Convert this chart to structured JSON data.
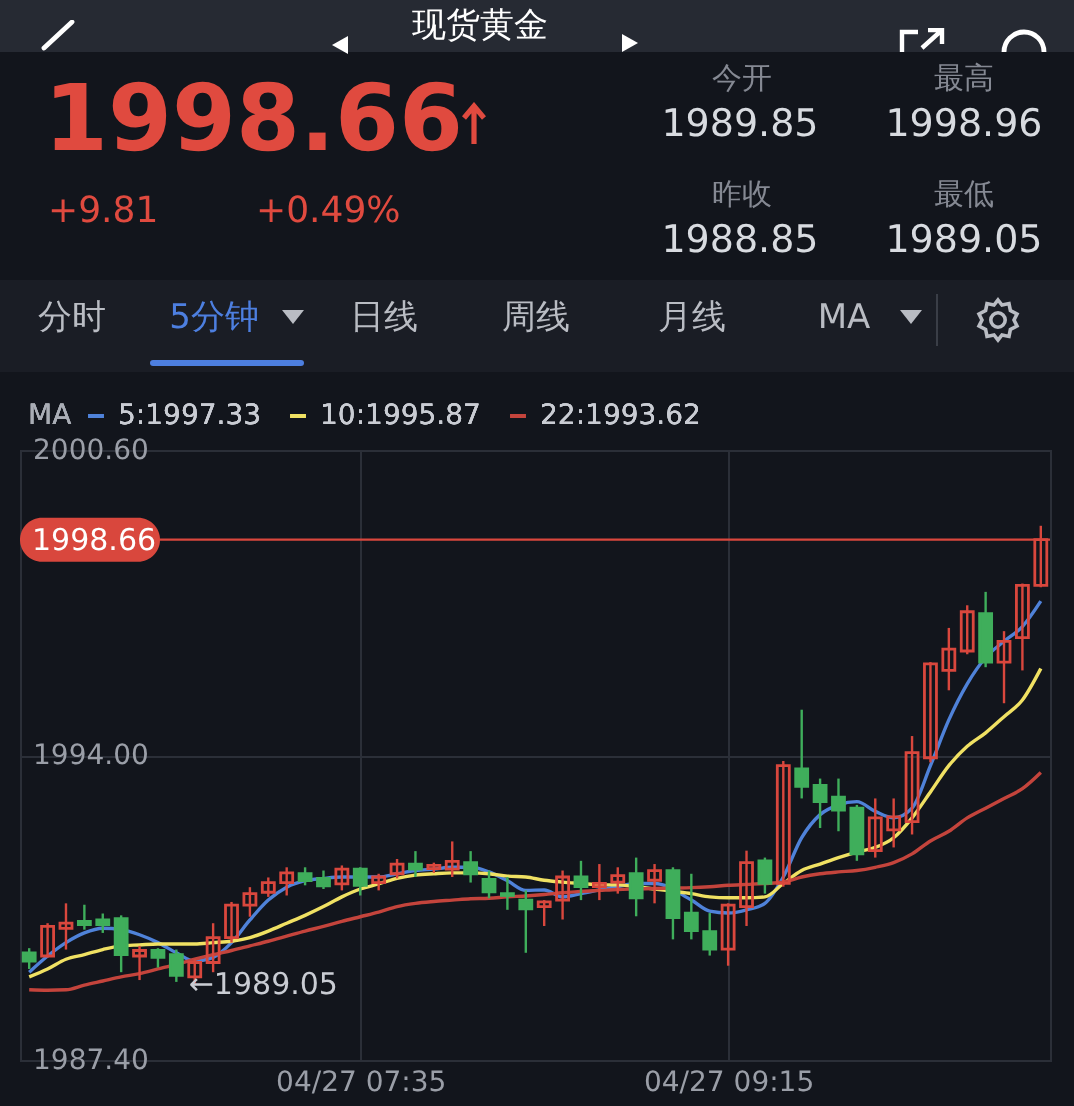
{
  "chart_data": {
    "type": "candlestick",
    "title": "现货黄金",
    "categories": [
      null,
      null,
      null,
      null,
      null,
      null,
      null,
      null,
      null,
      null,
      null,
      null,
      null,
      null,
      null,
      null,
      null,
      null,
      "04/27 07:35",
      null,
      null,
      null,
      null,
      null,
      null,
      null,
      null,
      null,
      null,
      null,
      null,
      null,
      null,
      null,
      null,
      null,
      null,
      null,
      "04/27 09:15",
      null,
      null,
      null,
      null,
      null,
      null,
      null,
      null,
      null,
      null,
      null,
      null,
      null,
      null,
      null,
      null,
      null
    ],
    "ohlc": [
      [
        1989.72,
        1989.82,
        1989.37,
        1989.54
      ],
      [
        1989.65,
        1990.36,
        1989.62,
        1990.29
      ],
      [
        1990.25,
        1990.79,
        1989.79,
        1990.36
      ],
      [
        1990.4,
        1990.76,
        1990.22,
        1990.33
      ],
      [
        1990.43,
        1990.57,
        1990.15,
        1990.33
      ],
      [
        1990.46,
        1990.53,
        1989.3,
        1989.68
      ],
      [
        1989.65,
        1989.87,
        1989.13,
        1989.77
      ],
      [
        1989.77,
        1989.82,
        1989.4,
        1989.62
      ],
      [
        1989.68,
        1989.79,
        1989.09,
        1989.23
      ],
      [
        1989.2,
        1989.58,
        1989.05,
        1989.51
      ],
      [
        1989.51,
        1990.36,
        1989.3,
        1990.05
      ],
      [
        1990.05,
        1990.82,
        1989.94,
        1990.75
      ],
      [
        1990.75,
        1991.14,
        1990.5,
        1991.0
      ],
      [
        1991.03,
        1991.35,
        1990.93,
        1991.24
      ],
      [
        1991.24,
        1991.57,
        1990.96,
        1991.45
      ],
      [
        1991.43,
        1991.57,
        1991.18,
        1991.28
      ],
      [
        1991.33,
        1991.5,
        1991.1,
        1991.17
      ],
      [
        1991.21,
        1991.61,
        1991.07,
        1991.53
      ],
      [
        1991.53,
        1991.57,
        1990.96,
        1991.18
      ],
      [
        1991.24,
        1991.43,
        1991.07,
        1991.36
      ],
      [
        1991.43,
        1991.75,
        1991.33,
        1991.64
      ],
      [
        1991.64,
        1991.92,
        1991.36,
        1991.53
      ],
      [
        1991.54,
        1991.67,
        1991.45,
        1991.61
      ],
      [
        1991.53,
        1992.13,
        1991.36,
        1991.7
      ],
      [
        1991.67,
        1991.92,
        1991.24,
        1991.43
      ],
      [
        1991.31,
        1991.5,
        1990.9,
        1991.04
      ],
      [
        1991.0,
        1991.36,
        1990.65,
        1990.96
      ],
      [
        1990.86,
        1991.07,
        1989.72,
        1990.67
      ],
      [
        1990.72,
        1990.86,
        1990.3,
        1990.82
      ],
      [
        1990.86,
        1991.5,
        1990.44,
        1991.36
      ],
      [
        1991.36,
        1991.71,
        1990.86,
        1991.15
      ],
      [
        1991.15,
        1991.64,
        1990.86,
        1991.22
      ],
      [
        1991.25,
        1991.57,
        1991.0,
        1991.39
      ],
      [
        1991.43,
        1991.78,
        1990.51,
        1990.91
      ],
      [
        1991.29,
        1991.64,
        1990.79,
        1991.5
      ],
      [
        1991.5,
        1991.57,
        1990.01,
        1990.48
      ],
      [
        1990.58,
        1991.43,
        1990.01,
        1990.2
      ],
      [
        1990.18,
        1990.58,
        1989.66,
        1989.8
      ],
      [
        1989.8,
        1990.79,
        1989.44,
        1990.75
      ],
      [
        1990.72,
        1991.93,
        1990.3,
        1991.67
      ],
      [
        1991.71,
        1991.78,
        1991.0,
        1991.22
      ],
      [
        1991.22,
        1993.87,
        1991.15,
        1993.77
      ],
      [
        1993.7,
        1994.98,
        1993.06,
        1993.32
      ],
      [
        1993.34,
        1993.49,
        1992.42,
        1992.99
      ],
      [
        1993.09,
        1993.49,
        1992.35,
        1992.81
      ],
      [
        1992.85,
        1992.92,
        1991.71,
        1991.86
      ],
      [
        1991.93,
        1993.06,
        1991.78,
        1992.64
      ],
      [
        1992.38,
        1993.06,
        1992.0,
        1992.66
      ],
      [
        1992.56,
        1994.41,
        1992.28,
        1994.05
      ],
      [
        1993.94,
        1996.01,
        1993.84,
        1995.97
      ],
      [
        1995.83,
        1996.75,
        1995.4,
        1996.29
      ],
      [
        1996.25,
        1997.24,
        1996.18,
        1997.1
      ],
      [
        1997.06,
        1997.53,
        1995.9,
        1996.01
      ],
      [
        1996.01,
        1996.68,
        1995.12,
        1996.46
      ],
      [
        1996.54,
        1997.71,
        1995.83,
        1997.67
      ],
      [
        1997.67,
        1998.96,
        1997.63,
        1998.66
      ]
    ],
    "colors": [
      "#3fae5b",
      "#d9473d",
      "#d9473d",
      "#3fae5b",
      "#3fae5b",
      "#3fae5b",
      "#d9473d",
      "#3fae5b",
      "#3fae5b",
      "#d9473d",
      "#d9473d",
      "#d9473d",
      "#d9473d",
      "#d9473d",
      "#d9473d",
      "#3fae5b",
      "#3fae5b",
      "#d9473d",
      "#3fae5b",
      "#d9473d",
      "#d9473d",
      "#3fae5b",
      "#d9473d",
      "#d9473d",
      "#3fae5b",
      "#3fae5b",
      "#3fae5b",
      "#3fae5b",
      "#d9473d",
      "#d9473d",
      "#3fae5b",
      "#d9473d",
      "#d9473d",
      "#3fae5b",
      "#d9473d",
      "#3fae5b",
      "#3fae5b",
      "#3fae5b",
      "#d9473d",
      "#d9473d",
      "#3fae5b",
      "#d9473d",
      "#3fae5b",
      "#3fae5b",
      "#3fae5b",
      "#3fae5b",
      "#d9473d",
      "#d9473d",
      "#d9473d",
      "#d9473d",
      "#d9473d",
      "#d9473d",
      "#3fae5b",
      "#d9473d",
      "#d9473d",
      "#d9473d"
    ],
    "series": [
      {
        "type": "line",
        "name": "5:1997.33",
        "color": "#4f82d9",
        "values": [
          1989.3,
          1989.65,
          1989.94,
          1990.15,
          1990.25,
          1990.22,
          1990.11,
          1989.94,
          1989.72,
          1989.54,
          1989.62,
          1989.94,
          1990.43,
          1990.86,
          1991.14,
          1991.28,
          1991.33,
          1991.36,
          1991.36,
          1991.36,
          1991.43,
          1991.5,
          1991.53,
          1991.57,
          1991.57,
          1991.47,
          1991.28,
          1991.07,
          1991.08,
          1990.93,
          1991.0,
          1991.08,
          1991.15,
          1991.22,
          1991.22,
          null,
          1990.86,
          1990.62,
          1990.58,
          1990.65,
          1990.79,
          1991.36,
          1992.21,
          1992.71,
          1992.92,
          1992.99,
          1992.78,
          1992.64,
          1992.85,
          1993.77,
          1994.76,
          1995.54,
          1996.11,
          1996.46,
          1996.78,
          1997.33
        ]
      },
      {
        "type": "line",
        "name": "10:1995.87",
        "color": "#f0e163",
        "values": [
          1989.2,
          1989.37,
          1989.58,
          1989.68,
          1989.79,
          1989.87,
          1989.89,
          1989.91,
          1989.91,
          1989.91,
          1989.94,
          1989.97,
          1990.05,
          1990.19,
          1990.36,
          1990.53,
          1990.72,
          1990.93,
          1991.1,
          1991.21,
          1991.33,
          1991.4,
          1991.43,
          1991.45,
          1991.45,
          1991.43,
          1991.38,
          1991.36,
          1991.29,
          1991.25,
          1991.22,
          1991.19,
          1991.19,
          1991.15,
          1991.1,
          1991.05,
          1991.0,
          1990.93,
          1990.91,
          1990.91,
          1990.93,
          1991.22,
          1991.5,
          1991.64,
          1991.78,
          1991.9,
          1992.0,
          1992.21,
          1992.64,
          1993.2,
          1993.77,
          1994.19,
          1994.48,
          1994.83,
          1995.19,
          1995.87
        ]
      },
      {
        "type": "line",
        "name": "22:1993.62",
        "color": "#c4443c",
        "values": [
          1988.92,
          1988.91,
          1988.92,
          1989.02,
          1989.11,
          1989.2,
          1989.27,
          1989.37,
          1989.47,
          1989.58,
          1989.68,
          1989.77,
          1989.87,
          1989.97,
          1990.08,
          1990.19,
          1990.29,
          1990.4,
          1990.5,
          1990.6,
          1990.72,
          1990.79,
          1990.83,
          1990.86,
          1990.89,
          1990.9,
          1990.93,
          1990.95,
          1990.98,
          1991.02,
          1991.05,
          1991.07,
          1991.09,
          1991.1,
          1991.11,
          1991.12,
          1991.13,
          1991.15,
          1991.18,
          1991.2,
          1991.22,
          1991.25,
          1991.36,
          1991.43,
          1991.47,
          1991.5,
          1991.57,
          1991.67,
          1991.86,
          1992.14,
          1992.35,
          1992.64,
          1992.85,
          1993.06,
          1993.27,
          1993.62
        ]
      }
    ],
    "legend_title": "MA",
    "legend": "top left",
    "ylim": [
      1987.4,
      2000.6
    ],
    "yticks": [
      {
        "value": 1987.4,
        "label": "1987.40"
      },
      {
        "value": 1994.0,
        "label": "1994.00"
      },
      {
        "value": 2000.6,
        "label": "2000.60"
      }
    ],
    "grid": true,
    "ref_lines": [
      {
        "axis": "y",
        "value": 1998.66,
        "label": "1998.66",
        "color": "#d9473d"
      }
    ],
    "annotations": [
      "1998.66",
      "+9.81",
      "+0.49%",
      "今开",
      "1989.85",
      "最高",
      "1998.96",
      "昨收",
      "1988.85",
      "最低",
      "1989.05",
      "分时",
      "5分钟",
      "日线",
      "周线",
      "月线",
      "MA",
      "←1989.05"
    ]
  }
}
